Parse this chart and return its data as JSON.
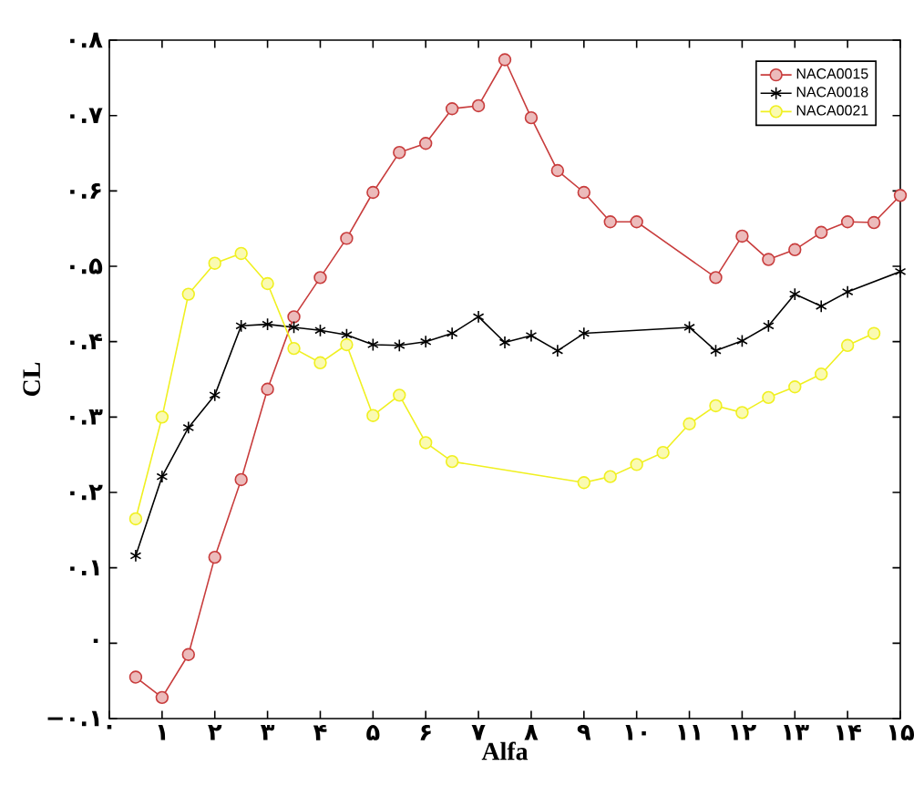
{
  "chart_data": {
    "type": "line",
    "xlabel": "Alfa",
    "ylabel": "CL",
    "xlim": [
      0,
      15
    ],
    "ylim": [
      -0.1,
      0.8
    ],
    "xticks": [
      {
        "value": 0,
        "label": "۰"
      },
      {
        "value": 1,
        "label": "۱"
      },
      {
        "value": 2,
        "label": "۲"
      },
      {
        "value": 3,
        "label": "۳"
      },
      {
        "value": 4,
        "label": "۴"
      },
      {
        "value": 5,
        "label": "۵"
      },
      {
        "value": 6,
        "label": "۶"
      },
      {
        "value": 7,
        "label": "۷"
      },
      {
        "value": 8,
        "label": "۸"
      },
      {
        "value": 9,
        "label": "۹"
      },
      {
        "value": 10,
        "label": "۱۰"
      },
      {
        "value": 11,
        "label": "۱۱"
      },
      {
        "value": 12,
        "label": "۱۲"
      },
      {
        "value": 13,
        "label": "۱۳"
      },
      {
        "value": 14,
        "label": "۱۴"
      },
      {
        "value": 15,
        "label": "۱۵"
      }
    ],
    "yticks": [
      {
        "value": -0.1,
        "label": "−۰.۱"
      },
      {
        "value": 0,
        "label": "۰"
      },
      {
        "value": 0.1,
        "label": "۰.۱"
      },
      {
        "value": 0.2,
        "label": "۰.۲"
      },
      {
        "value": 0.3,
        "label": "۰.۳"
      },
      {
        "value": 0.4,
        "label": "۰.۴"
      },
      {
        "value": 0.5,
        "label": "۰.۵"
      },
      {
        "value": 0.6,
        "label": "۰.۶"
      },
      {
        "value": 0.7,
        "label": "۰.۷"
      },
      {
        "value": 0.8,
        "label": "۰.۸"
      }
    ],
    "grid": false,
    "legend": "top right",
    "line_style": "solid",
    "series": [
      {
        "name": "NACA0015",
        "color": "#c83c3c",
        "marker": "circle",
        "x": [
          0.5,
          1,
          1.5,
          2,
          2.5,
          3,
          3.5,
          4,
          4.5,
          5,
          5.5,
          6,
          6.5,
          7,
          7.5,
          8,
          8.5,
          9,
          9.5,
          10,
          11.5,
          12,
          12.5,
          13,
          13.5,
          14,
          14.5,
          15
        ],
        "values": [
          -0.045,
          -0.072,
          -0.015,
          0.114,
          0.217,
          0.337,
          0.433,
          0.485,
          0.537,
          0.598,
          0.651,
          0.663,
          0.709,
          0.713,
          0.774,
          0.697,
          0.627,
          0.598,
          0.559,
          0.559,
          0.485,
          0.54,
          0.509,
          0.522,
          0.545,
          0.559,
          0.558,
          0.594
        ]
      },
      {
        "name": "NACA0018",
        "color": "#000000",
        "marker": "cross",
        "x": [
          0.5,
          1,
          1.5,
          2,
          2.5,
          3,
          3.5,
          4,
          4.5,
          5,
          5.5,
          6,
          6.5,
          7,
          7.5,
          8,
          8.5,
          9,
          11,
          11.5,
          12,
          12.5,
          13,
          13.5,
          14,
          15
        ],
        "values": [
          0.116,
          0.221,
          0.286,
          0.329,
          0.421,
          0.423,
          0.419,
          0.415,
          0.409,
          0.396,
          0.395,
          0.4,
          0.411,
          0.433,
          0.399,
          0.408,
          0.388,
          0.411,
          0.419,
          0.388,
          0.401,
          0.421,
          0.463,
          0.447,
          0.466,
          0.493
        ]
      },
      {
        "name": "NACA0021",
        "color": "#f0f020",
        "marker": "circle",
        "x": [
          0.5,
          1,
          1.5,
          2,
          2.5,
          3,
          3.5,
          4,
          4.5,
          5,
          5.5,
          6,
          6.5,
          9,
          9.5,
          10,
          10.5,
          11,
          11.5,
          12,
          12.5,
          13,
          13.5,
          14,
          14.5
        ],
        "values": [
          0.165,
          0.3,
          0.463,
          0.504,
          0.517,
          0.477,
          0.391,
          0.372,
          0.396,
          0.302,
          0.329,
          0.266,
          0.241,
          0.213,
          0.221,
          0.237,
          0.253,
          0.291,
          0.315,
          0.306,
          0.326,
          0.34,
          0.357,
          0.395,
          0.411
        ]
      }
    ]
  }
}
